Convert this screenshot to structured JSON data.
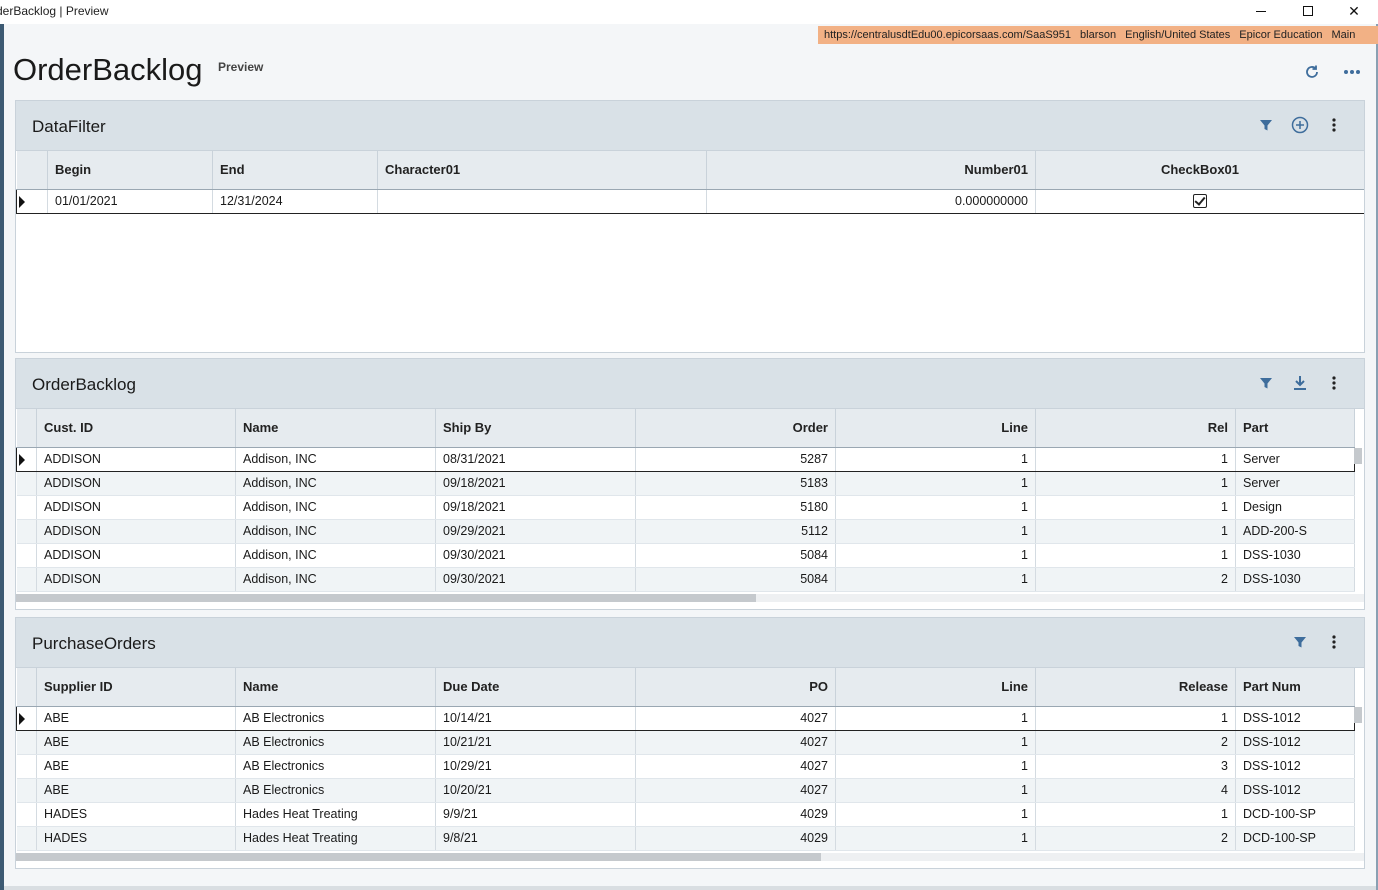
{
  "window": {
    "title": "derBacklog | Preview"
  },
  "session": {
    "url": "https://centralusdtEdu00.epicorsaas.com/SaaS951",
    "user": "blarson",
    "language": "English/United States",
    "company": "Epicor Education",
    "site": "Main"
  },
  "app": {
    "title": "OrderBacklog",
    "mode": "Preview"
  },
  "data_filter": {
    "title": "DataFilter",
    "columns": [
      "Begin",
      "End",
      "Character01",
      "Number01",
      "CheckBox01"
    ],
    "row": {
      "begin": "01/01/2021",
      "end": "12/31/2024",
      "character01": "",
      "number01": "0.000000000",
      "checkbox01": true
    }
  },
  "order_backlog": {
    "title": "OrderBacklog",
    "columns": [
      "Cust. ID",
      "Name",
      "Ship By",
      "Order",
      "Line",
      "Rel",
      "Part"
    ],
    "rows": [
      [
        "ADDISON",
        "Addison, INC",
        "08/31/2021",
        "5287",
        "1",
        "1",
        "Server"
      ],
      [
        "ADDISON",
        "Addison, INC",
        "09/18/2021",
        "5183",
        "1",
        "1",
        "Server"
      ],
      [
        "ADDISON",
        "Addison, INC",
        "09/18/2021",
        "5180",
        "1",
        "1",
        "Design"
      ],
      [
        "ADDISON",
        "Addison, INC",
        "09/29/2021",
        "5112",
        "1",
        "1",
        "ADD-200-S"
      ],
      [
        "ADDISON",
        "Addison, INC",
        "09/30/2021",
        "5084",
        "1",
        "1",
        "DSS-1030"
      ],
      [
        "ADDISON",
        "Addison, INC",
        "09/30/2021",
        "5084",
        "1",
        "2",
        "DSS-1030"
      ]
    ]
  },
  "purchase_orders": {
    "title": "PurchaseOrders",
    "columns": [
      "Supplier ID",
      "Name",
      "Due Date",
      "PO",
      "Line",
      "Release",
      "Part Num"
    ],
    "rows": [
      [
        "ABE",
        "AB Electronics",
        "10/14/21",
        "4027",
        "1",
        "1",
        "DSS-1012"
      ],
      [
        "ABE",
        "AB Electronics",
        "10/21/21",
        "4027",
        "1",
        "2",
        "DSS-1012"
      ],
      [
        "ABE",
        "AB Electronics",
        "10/29/21",
        "4027",
        "1",
        "3",
        "DSS-1012"
      ],
      [
        "ABE",
        "AB Electronics",
        "10/20/21",
        "4027",
        "1",
        "4",
        "DSS-1012"
      ],
      [
        "HADES",
        "Hades Heat Treating",
        "9/9/21",
        "4029",
        "1",
        "1",
        "DCD-100-SP"
      ],
      [
        "HADES",
        "Hades Heat Treating",
        "9/8/21",
        "4029",
        "1",
        "2",
        "DCD-100-SP"
      ]
    ]
  },
  "icons": {
    "refresh": "refresh-icon",
    "more": "more-horizontal-icon",
    "filter": "filter-icon",
    "add": "add-circle-icon",
    "download": "download-icon",
    "kebab": "more-vertical-icon"
  },
  "colors": {
    "accent": "#3e6d9c",
    "info_bar": "#f2b185",
    "panel_header": "#d9e1e7"
  }
}
